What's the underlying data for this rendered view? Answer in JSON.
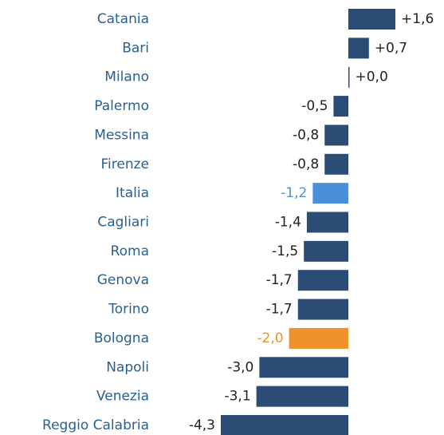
{
  "chart_data": {
    "type": "bar",
    "orientation": "horizontal",
    "categories": [
      "Catania",
      "Bari",
      "Milano",
      "Palermo",
      "Messina",
      "Firenze",
      "Italia",
      "Cagliari",
      "Roma",
      "Genova",
      "Torino",
      "Bologna",
      "Napoli",
      "Venezia",
      "Reggio Calabria"
    ],
    "values": [
      1.6,
      0.7,
      0.0,
      -0.5,
      -0.8,
      -0.8,
      -1.2,
      -1.4,
      -1.5,
      -1.7,
      -1.7,
      -2.0,
      -3.0,
      -3.1,
      -4.3
    ],
    "value_labels": [
      "+1,6",
      "+0,7",
      "+0,0",
      "-0,5",
      "-0,8",
      "-0,8",
      "-1,2",
      "-1,4",
      "-1,5",
      "-1,7",
      "-1,7",
      "-2,0",
      "-3,0",
      "-3,1",
      "-4,3"
    ],
    "colors": [
      "#2b4c74",
      "#2b4c74",
      "#2b4c74",
      "#2b4c74",
      "#2b4c74",
      "#2b4c74",
      "#4a90d9",
      "#2b4c74",
      "#2b4c74",
      "#2b4c74",
      "#2b4c74",
      "#f0922b",
      "#2b4c74",
      "#2b4c74",
      "#2b4c74"
    ]
  }
}
